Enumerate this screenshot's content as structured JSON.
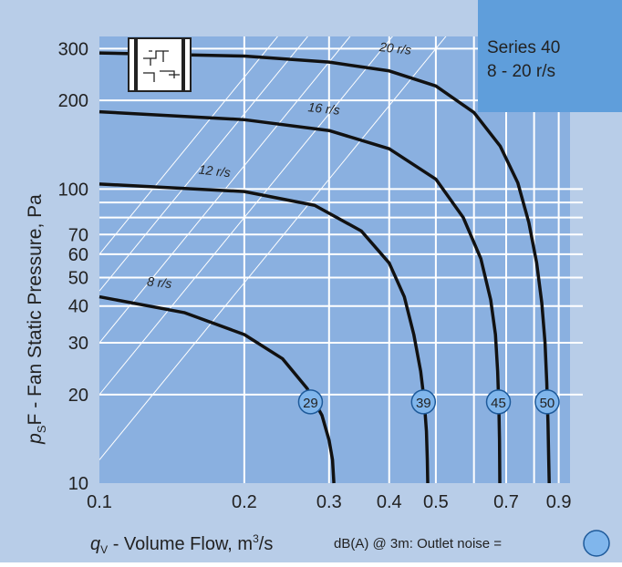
{
  "chart_data": {
    "type": "line",
    "title": "",
    "subtitle": "",
    "series_box": {
      "line1": "Series 40",
      "line2": "8 - 20 r/s"
    },
    "xlabel": {
      "main": "q",
      "sub": "V",
      "rest": " - Volume Flow, m",
      "sup": "3",
      "tail": "/s"
    },
    "ylabel": {
      "main": "p",
      "sub": "S",
      "rest": "F - Fan Static Pressure, Pa"
    },
    "x_scale": "log",
    "y_scale": "log",
    "xlim": [
      0.1,
      0.95
    ],
    "ylim": [
      10,
      330
    ],
    "x_ticks": [
      {
        "value": 0.1,
        "label": "0.1"
      },
      {
        "value": 0.2,
        "label": "0.2"
      },
      {
        "value": 0.3,
        "label": "0.3"
      },
      {
        "value": 0.4,
        "label": "0.4"
      },
      {
        "value": 0.5,
        "label": "0.5"
      },
      {
        "value": 0.7,
        "label": "0.7"
      },
      {
        "value": 0.9,
        "label": "0.9"
      }
    ],
    "x_grid": [
      0.2,
      0.3,
      0.4,
      0.5,
      0.6,
      0.7,
      0.8,
      0.9
    ],
    "y_ticks": [
      {
        "value": 10,
        "label": "10"
      },
      {
        "value": 20,
        "label": "20"
      },
      {
        "value": 30,
        "label": "30"
      },
      {
        "value": 40,
        "label": "40"
      },
      {
        "value": 50,
        "label": "50"
      },
      {
        "value": 60,
        "label": "60"
      },
      {
        "value": 70,
        "label": "70"
      },
      {
        "value": 100,
        "label": "100"
      },
      {
        "value": 200,
        "label": "200"
      },
      {
        "value": 300,
        "label": "300"
      }
    ],
    "y_grid": [
      20,
      30,
      40,
      50,
      60,
      70,
      80,
      90,
      100,
      200,
      300
    ],
    "grid": true,
    "diagonals": [
      0.012,
      0.02,
      0.03,
      0.045,
      0.06
    ],
    "series": [
      {
        "name": "8 r/s",
        "noise": "29",
        "points": [
          [
            0.1,
            43
          ],
          [
            0.15,
            38
          ],
          [
            0.2,
            32
          ],
          [
            0.24,
            26.5
          ],
          [
            0.27,
            21
          ],
          [
            0.29,
            17
          ],
          [
            0.3,
            14
          ],
          [
            0.305,
            12
          ],
          [
            0.307,
            10
          ]
        ]
      },
      {
        "name": "12 r/s",
        "noise": "39",
        "points": [
          [
            0.1,
            104
          ],
          [
            0.2,
            98
          ],
          [
            0.28,
            88
          ],
          [
            0.35,
            72
          ],
          [
            0.4,
            56
          ],
          [
            0.43,
            43
          ],
          [
            0.45,
            32
          ],
          [
            0.465,
            24
          ],
          [
            0.473,
            19
          ],
          [
            0.478,
            15
          ],
          [
            0.48,
            12
          ],
          [
            0.481,
            10
          ]
        ]
      },
      {
        "name": "16 r/s",
        "noise": "45",
        "points": [
          [
            0.1,
            183
          ],
          [
            0.2,
            172
          ],
          [
            0.3,
            158
          ],
          [
            0.4,
            137
          ],
          [
            0.5,
            108
          ],
          [
            0.57,
            80
          ],
          [
            0.62,
            58
          ],
          [
            0.65,
            42
          ],
          [
            0.665,
            32
          ],
          [
            0.672,
            24
          ],
          [
            0.676,
            18
          ],
          [
            0.678,
            14
          ],
          [
            0.679,
            10
          ]
        ]
      },
      {
        "name": "20 r/s",
        "noise": "50",
        "points": [
          [
            0.1,
            290
          ],
          [
            0.2,
            283
          ],
          [
            0.3,
            270
          ],
          [
            0.4,
            252
          ],
          [
            0.5,
            224
          ],
          [
            0.6,
            182
          ],
          [
            0.68,
            140
          ],
          [
            0.74,
            105
          ],
          [
            0.78,
            77
          ],
          [
            0.81,
            56
          ],
          [
            0.83,
            41
          ],
          [
            0.843,
            30
          ],
          [
            0.85,
            22
          ],
          [
            0.855,
            16
          ],
          [
            0.858,
            12
          ],
          [
            0.86,
            10
          ]
        ]
      }
    ],
    "noise_legend": "dB(A) @ 3m:  Outlet noise  ="
  },
  "colors": {
    "background": "#b8cde8",
    "plot_area": "#8ab0e0",
    "series_box": "#5f9edb",
    "curve": "#111111",
    "grid": "#ffffff",
    "marker_fill": "#80b6ec",
    "marker_stroke": "#1e5a9a",
    "text": "#222222"
  },
  "icons": {
    "unit_diagram": "fan-unit-schematic-icon"
  }
}
